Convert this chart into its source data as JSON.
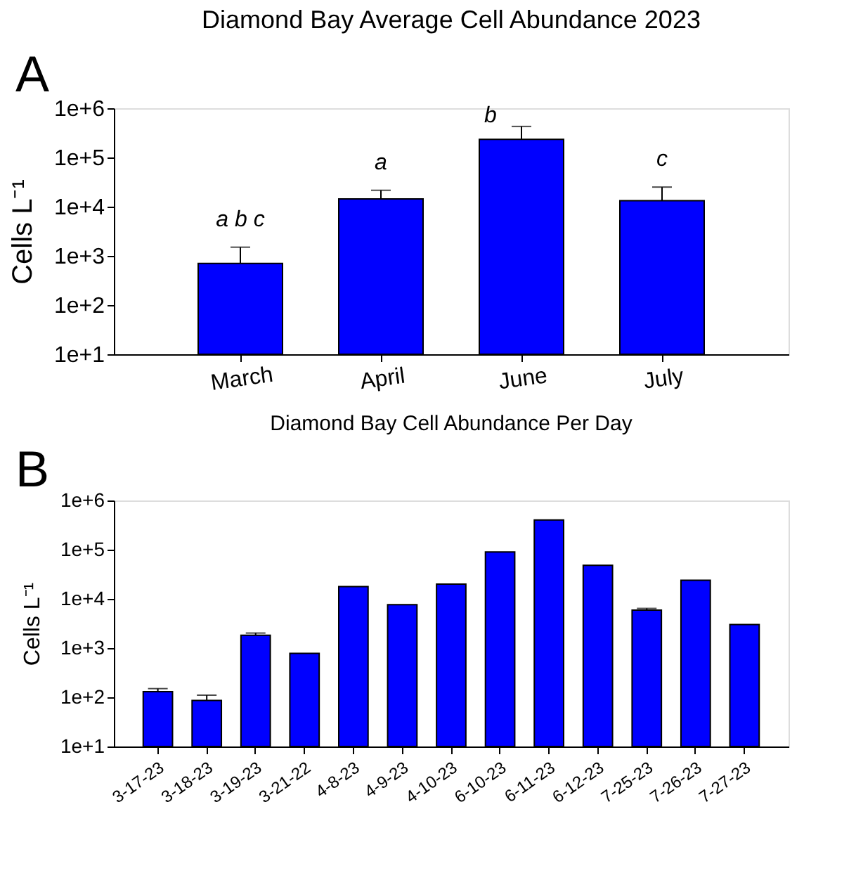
{
  "chart_data": [
    {
      "type": "bar",
      "title": "Diamond Bay Average Cell Abundance 2023",
      "ylabel": "Cells L⁻¹",
      "log": true,
      "grid": false,
      "categories": [
        "March",
        "April",
        "June",
        "July"
      ],
      "series": [
        {
          "color": "#0000ff",
          "values": [
            700,
            14400,
            234000,
            13200
          ],
          "errors": [
            [
              700,
              1500
            ],
            [
              14400,
              21500
            ],
            [
              234000,
              427000
            ],
            [
              13200,
              25000
            ]
          ]
        }
      ],
      "ylim": [
        10,
        1000000
      ],
      "yticks": [
        {
          "value": 10,
          "label": "1e+1"
        },
        {
          "value": 100,
          "label": "1e+2"
        },
        {
          "value": 1000,
          "label": "1e+3"
        },
        {
          "value": 10000,
          "label": "1e+4"
        },
        {
          "value": 100000,
          "label": "1e+5"
        },
        {
          "value": 1000000,
          "label": "1e+6"
        }
      ],
      "annotations": [
        "A",
        "a b c",
        "a",
        "b",
        "c"
      ]
    },
    {
      "type": "bar",
      "title": "Diamond Bay Cell Abundance Per Day",
      "ylabel": "Cells L⁻¹",
      "log": true,
      "grid": false,
      "categories": [
        "3-17-23",
        "3-18-23",
        "3-19-23",
        "3-21-22",
        "4-8-23",
        "4-9-23",
        "4-10-23",
        "6-10-23",
        "6-11-23",
        "6-12-23",
        "7-25-23",
        "7-26-23",
        "7-27-23"
      ],
      "series": [
        {
          "color": "#0000ff",
          "values": [
            130,
            86,
            1820,
            780,
            17800,
            7600,
            20000,
            90000,
            400000,
            48000,
            5900,
            24000,
            3000
          ],
          "errors": [
            [
              130,
              150
            ],
            [
              86,
              110
            ],
            [
              1820,
              2020
            ],
            null,
            null,
            null,
            null,
            null,
            null,
            null,
            [
              5900,
              6400
            ],
            null,
            null
          ]
        }
      ],
      "ylim": [
        10,
        1000000
      ],
      "yticks": [
        {
          "value": 10,
          "label": "1e+1"
        },
        {
          "value": 100,
          "label": "1e+2"
        },
        {
          "value": 1000,
          "label": "1e+3"
        },
        {
          "value": 10000,
          "label": "1e+4"
        },
        {
          "value": 100000,
          "label": "1e+5"
        },
        {
          "value": 1000000,
          "label": "1e+6"
        }
      ],
      "annotations": [
        "B"
      ]
    }
  ]
}
